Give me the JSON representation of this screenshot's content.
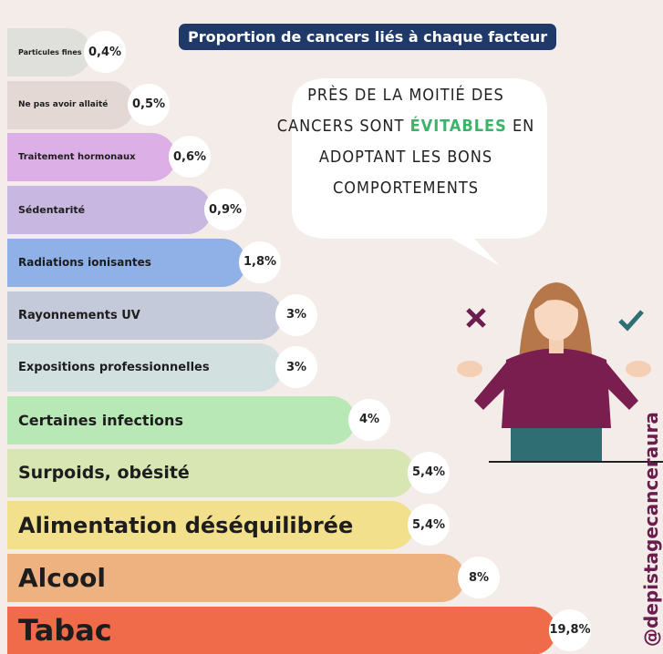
{
  "title": "Proportion de cancers liés à chaque facteur",
  "items": [
    {
      "label": "Particules fines",
      "value": "0,4%"
    },
    {
      "label": "Ne pas avoir allaité",
      "value": "0,5%"
    },
    {
      "label": "Traitement hormonaux",
      "value": "0,6%"
    },
    {
      "label": "Sédentarité",
      "value": "0,9%"
    },
    {
      "label": "Radiations ionisantes",
      "value": "1,8%"
    },
    {
      "label": "Rayonnements UV",
      "value": "3%"
    },
    {
      "label": "Expositions professionnelles",
      "value": "3%"
    },
    {
      "label": "Certaines infections",
      "value": "4%"
    },
    {
      "label": "Surpoids, obésité",
      "value": "5,4%"
    },
    {
      "label": "Alimentation déséquilibrée",
      "value": "5,4%"
    },
    {
      "label": "Alcool",
      "value": "8%"
    },
    {
      "label": "Tabac",
      "value": "19,8%"
    }
  ],
  "bubble": {
    "line1": "PRÈS DE LA MOITIÉ DES",
    "line2_start": "CANCERS SONT",
    "line2_highlight": "ÉVITABLES",
    "line2_end": "EN",
    "line3": "ADOPTANT LES BONS",
    "line4": "COMPORTEMENTS"
  },
  "handle": "@depistagecanceraura"
}
